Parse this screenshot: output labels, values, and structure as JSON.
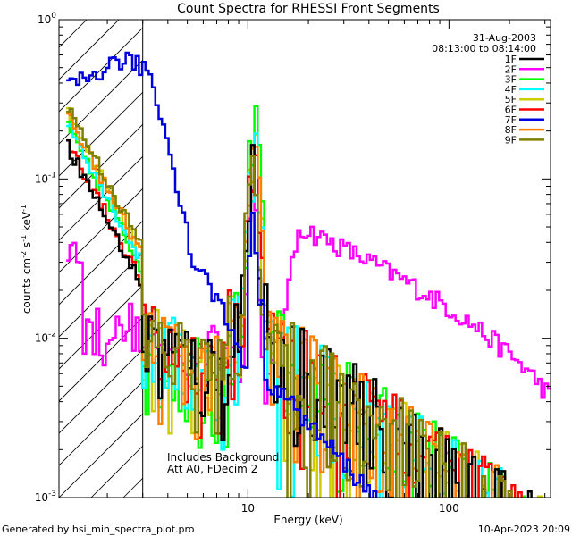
{
  "chart_data": {
    "type": "line",
    "title": "Count Spectra for RHESSI Front Segments",
    "xlabel": "Energy (keV)",
    "ylabel": "counts cm^-2 s^-1 keV^-1",
    "xscale": "log",
    "yscale": "log",
    "xlim": [
      1.15,
      320
    ],
    "ylim": [
      0.001,
      1.0
    ],
    "x_ticks": [
      "10",
      "100"
    ],
    "y_ticks": [
      "10^-3",
      "10^-2",
      "10^-1",
      "10^0"
    ],
    "date": "31-Aug-2003",
    "time_range": "08:13:00 to 08:14:00",
    "annotation_lines": [
      "Includes Background",
      "Att A0, FDecim 2"
    ],
    "attenuator_region_max_kev": 3.0,
    "footer_left": "Generated by hsi_min_spectra_plot.pro",
    "footer_right": "10-Apr-2023 20:09",
    "series": [
      {
        "name": "1F",
        "color": "#000000"
      },
      {
        "name": "2F",
        "color": "#ff00ff"
      },
      {
        "name": "3F",
        "color": "#00ff00"
      },
      {
        "name": "4F",
        "color": "#00ffff"
      },
      {
        "name": "5F",
        "color": "#cccc00"
      },
      {
        "name": "6F",
        "color": "#ff0000"
      },
      {
        "name": "7F",
        "color": "#0000dd"
      },
      {
        "name": "8F",
        "color": "#ff8000"
      },
      {
        "name": "9F",
        "color": "#7f7f00"
      }
    ]
  }
}
